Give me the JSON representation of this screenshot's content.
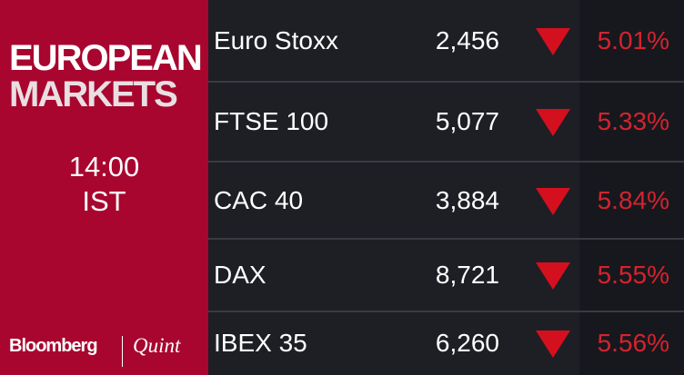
{
  "header": {
    "title_line1": "EUROPEAN",
    "title_line2": "MARKETS",
    "time": "14:00",
    "timezone": "IST"
  },
  "brand": {
    "name": "Bloomberg",
    "partner": "Quint"
  },
  "table": {
    "rows": [
      [
        "Euro Stoxx",
        "2,456",
        "5.01%"
      ],
      [
        "FTSE 100",
        "5,077",
        "5.33%"
      ],
      [
        "CAC 40",
        "3,884",
        "5.84%"
      ],
      [
        "DAX",
        "8,721",
        "5.55%"
      ],
      [
        "IBEX 35",
        "6,260",
        "5.56%"
      ]
    ]
  }
}
